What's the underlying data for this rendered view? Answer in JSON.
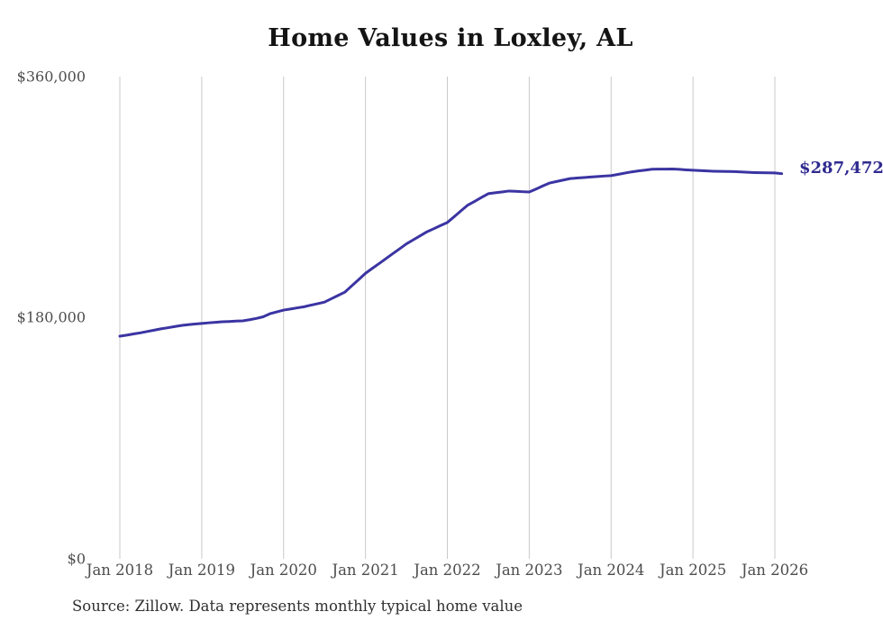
{
  "chart_data": {
    "type": "line",
    "title": "Home Values in Loxley, AL",
    "source_note": "Source: Zillow. Data represents monthly typical home value",
    "end_label": "$287,472",
    "end_value": 287472,
    "series_name": "Monthly typical home value",
    "x_start": "Jan 2018",
    "x_end": "Feb 2026",
    "x_ticks": [
      "Jan 2018",
      "Jan 2019",
      "Jan 2020",
      "Jan 2021",
      "Jan 2022",
      "Jan 2023",
      "Jan 2024",
      "Jan 2025",
      "Jan 2026"
    ],
    "y_ticks": [
      {
        "label": "$0",
        "value": 0
      },
      {
        "label": "$180,000",
        "value": 180000
      },
      {
        "label": "$360,000",
        "value": 360000
      }
    ],
    "ylim": [
      0,
      360000
    ],
    "grid": "vertical-only",
    "legend": "none",
    "line_color": "#3b34a2",
    "label_color": "#2f2a8f",
    "grid_color": "#c9c9c9",
    "values_monthly": [
      166000,
      166800,
      167700,
      168500,
      169500,
      170500,
      171500,
      172300,
      173200,
      174000,
      174600,
      175100,
      175500,
      176000,
      176400,
      176800,
      177000,
      177300,
      177500,
      178300,
      179300,
      180500,
      182800,
      184200,
      185500,
      186300,
      187200,
      188000,
      189200,
      190300,
      191500,
      194000,
      196500,
      199000,
      203700,
      208300,
      213000,
      216700,
      220300,
      224000,
      227700,
      231300,
      235000,
      238000,
      241000,
      244000,
      246300,
      248700,
      251000,
      255300,
      259700,
      264000,
      266800,
      269700,
      272500,
      273200,
      273800,
      274500,
      274300,
      274000,
      273800,
      276000,
      278300,
      280500,
      281600,
      282700,
      283800,
      284200,
      284600,
      285000,
      285300,
      285700,
      286000,
      286900,
      287900,
      288800,
      289500,
      290100,
      290800,
      290900,
      290900,
      291000,
      290700,
      290300,
      290000,
      289800,
      289500,
      289300,
      289200,
      289100,
      289000,
      288800,
      288500,
      288300,
      288200,
      288100,
      288000,
      287472
    ]
  }
}
